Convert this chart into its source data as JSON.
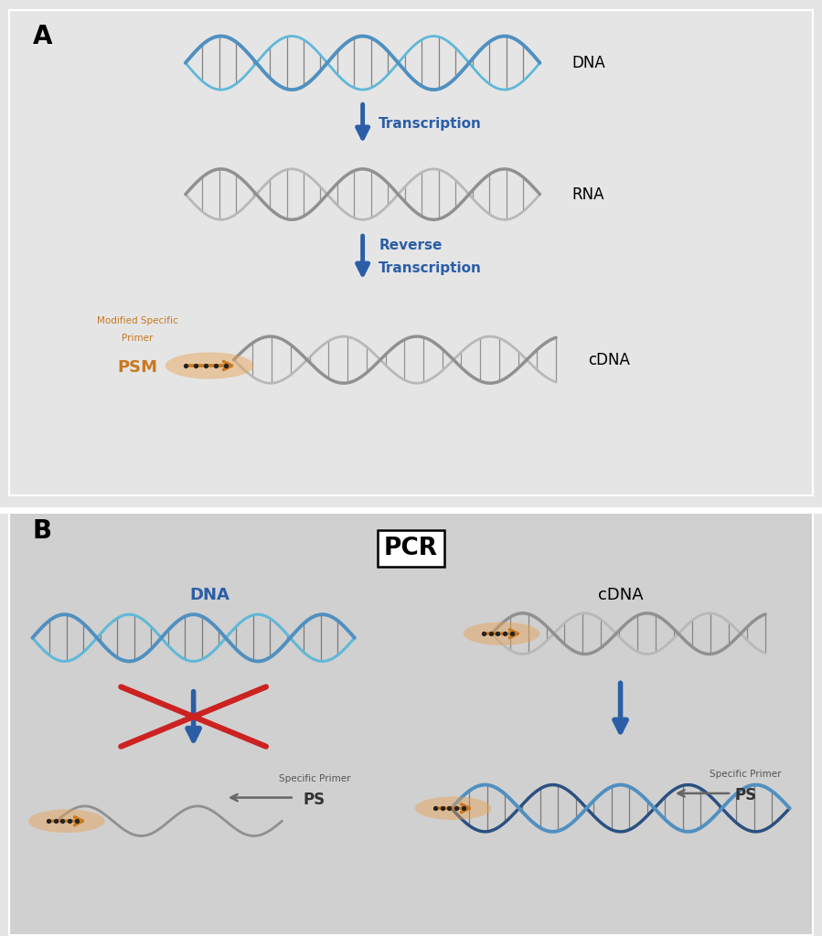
{
  "bg_color": "#e5e5e5",
  "bg_color_b": "#d0d0d0",
  "panel_A_label": "A",
  "panel_B_label": "B",
  "blue_color": "#2b5ea7",
  "orange_color": "#c87820",
  "orange_light": "#e8a050",
  "red_color": "#cc2222",
  "text_transcription": "Transcription",
  "text_reverse_line1": "Reverse",
  "text_reverse_line2": "Transcription",
  "text_DNA": "DNA",
  "text_RNA": "RNA",
  "text_cDNA": "cDNA",
  "text_PCR": "PCR",
  "text_PSM": "PSM",
  "text_PS": "PS",
  "text_modified_line1": "Modified Specific",
  "text_modified_line2": "Primer",
  "text_specific": "Specific Primer",
  "dna_blue1": "#5090c0",
  "dna_blue2": "#60b8d8",
  "dna_teal": "#7ab8c8",
  "dna_gray1": "#909090",
  "dna_gray2": "#b8b8b8",
  "dna_dark_blue": "#2a5080",
  "rung_color": "#404040"
}
